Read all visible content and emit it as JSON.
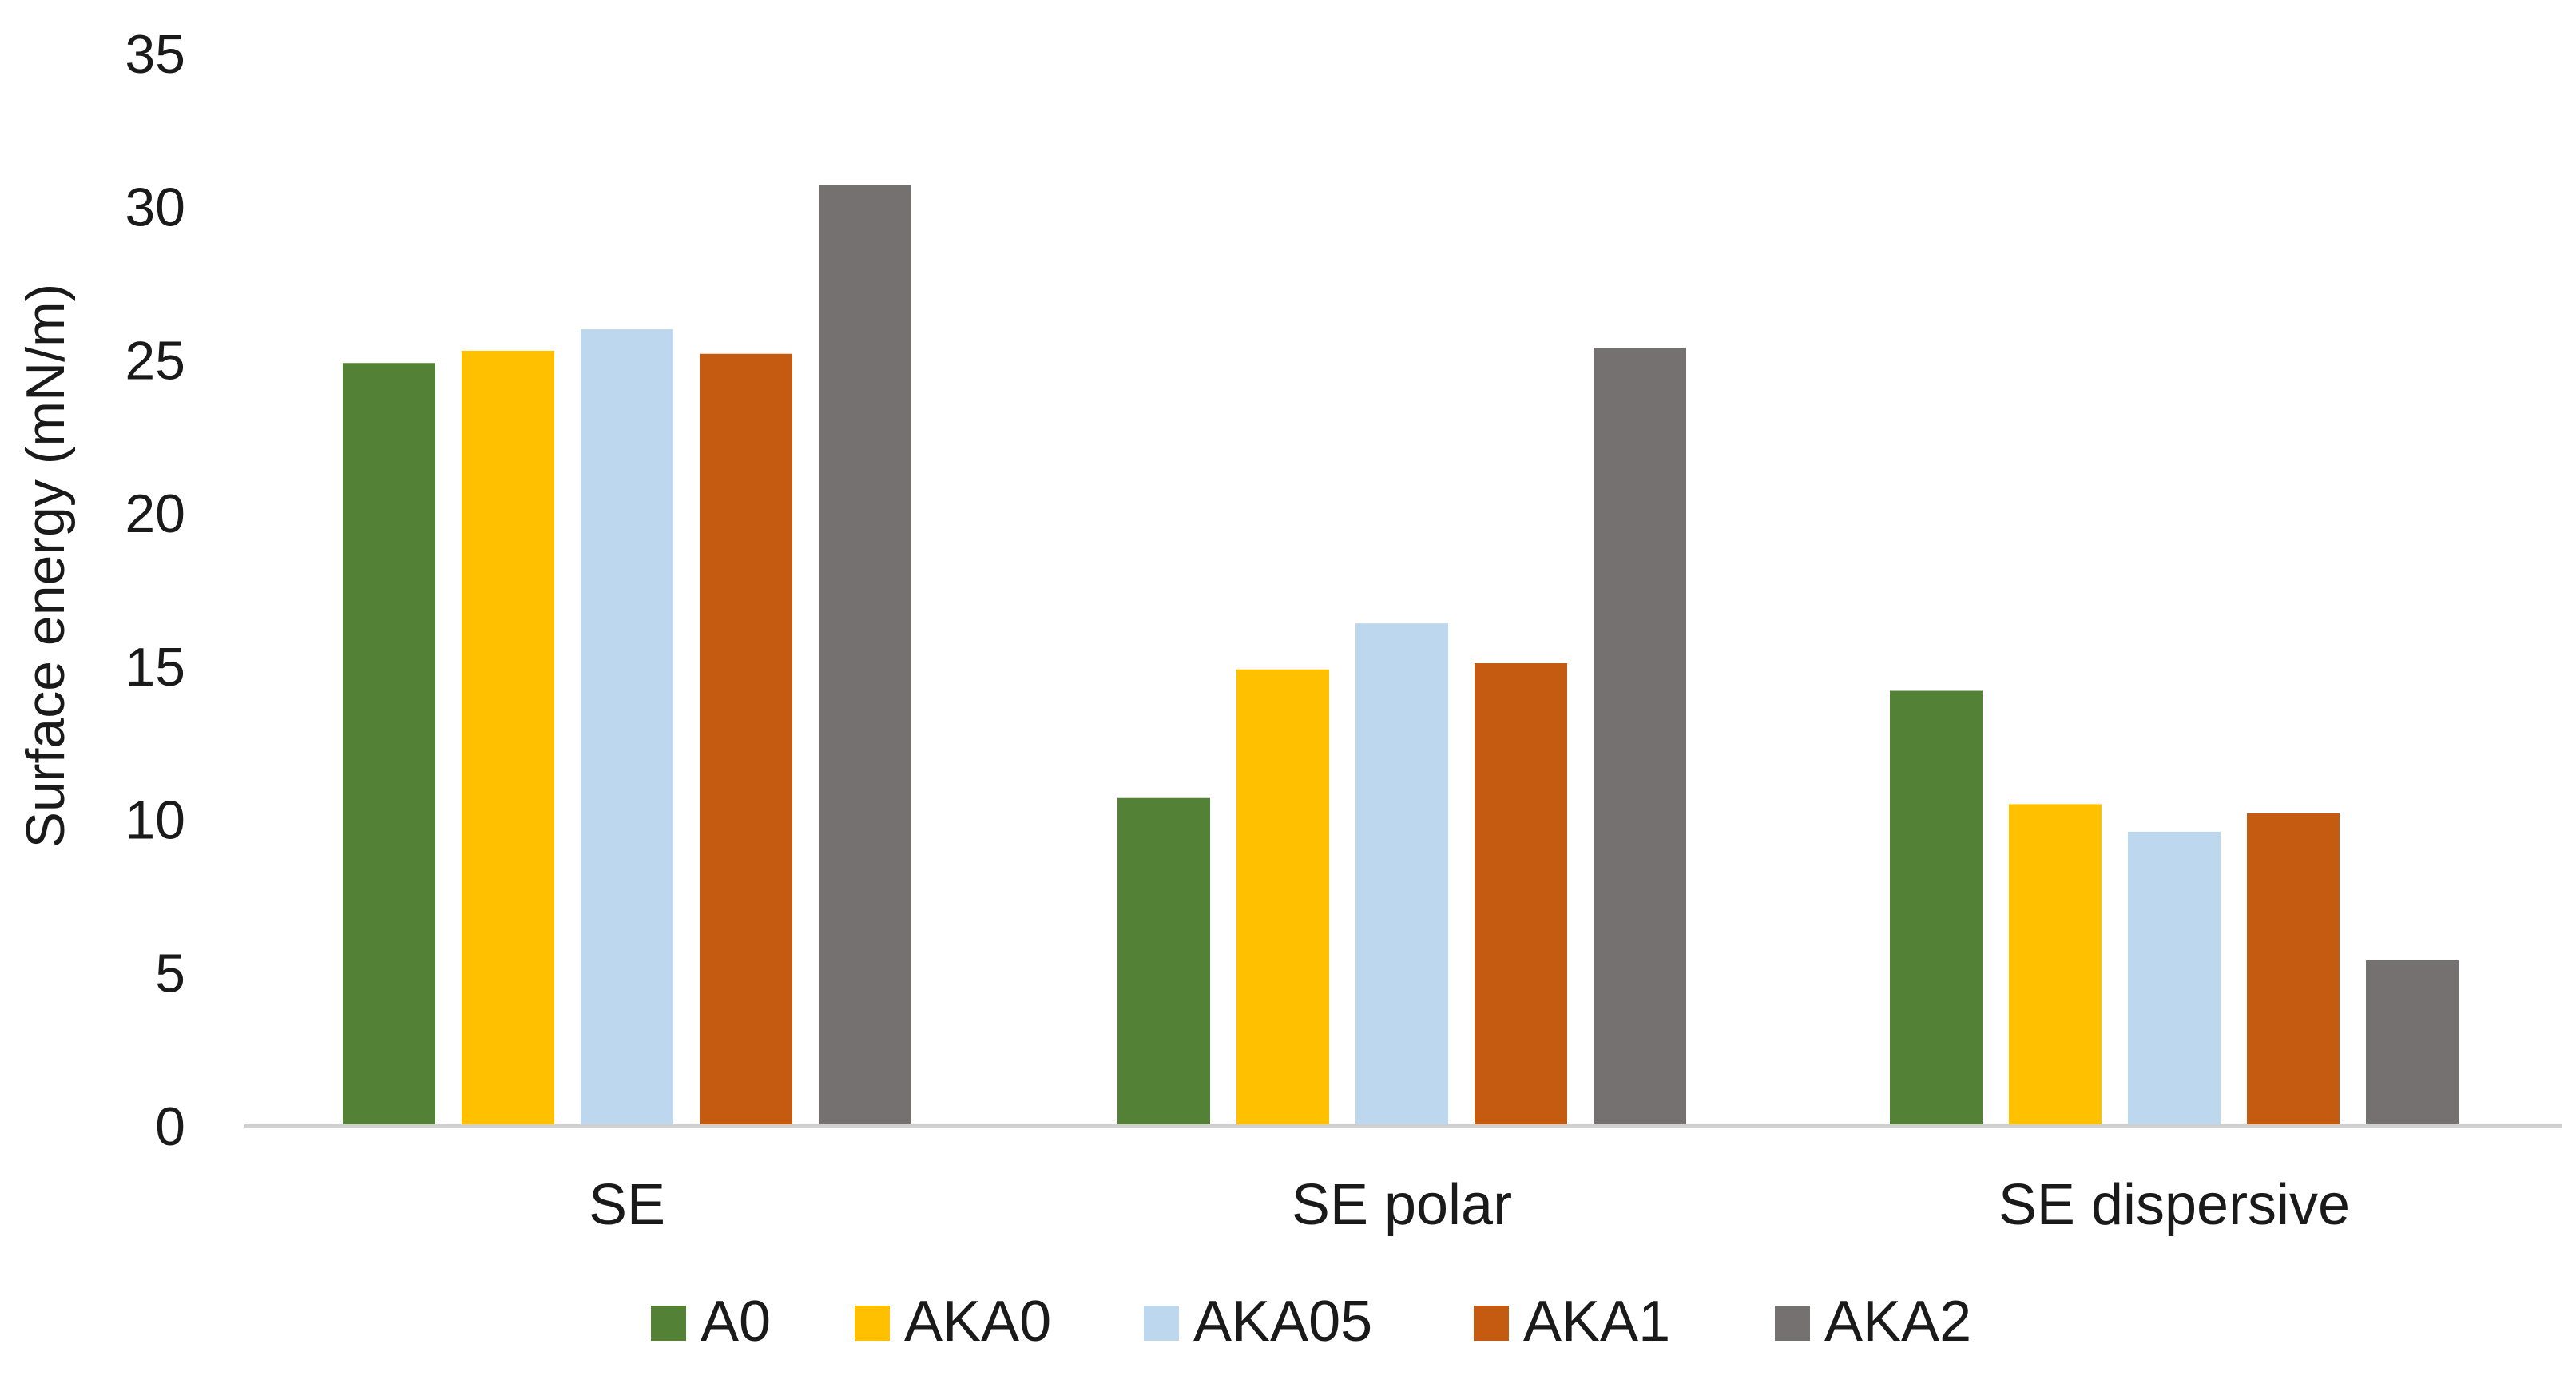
{
  "chart_data": {
    "type": "bar",
    "title": "",
    "xlabel": "",
    "ylabel": "Surface energy (mN/m)",
    "ylim": [
      0,
      35
    ],
    "yticks": [
      0,
      5,
      10,
      15,
      20,
      25,
      30,
      35
    ],
    "grid": false,
    "legend_position": "bottom",
    "categories": [
      "SE",
      "SE polar",
      "SE dispersive"
    ],
    "series": [
      {
        "name": "A0",
        "color": "#538135",
        "values": [
          24.9,
          10.7,
          14.2
        ]
      },
      {
        "name": "AKA0",
        "color": "#FFC000",
        "values": [
          25.3,
          14.9,
          10.5
        ]
      },
      {
        "name": "AKA05",
        "color": "#BDD7EE",
        "values": [
          26.0,
          16.4,
          9.6
        ]
      },
      {
        "name": "AKA1",
        "color": "#C55A11",
        "values": [
          25.2,
          15.1,
          10.2
        ]
      },
      {
        "name": "AKA2",
        "color": "#767171",
        "values": [
          30.7,
          25.4,
          5.4
        ]
      }
    ]
  }
}
